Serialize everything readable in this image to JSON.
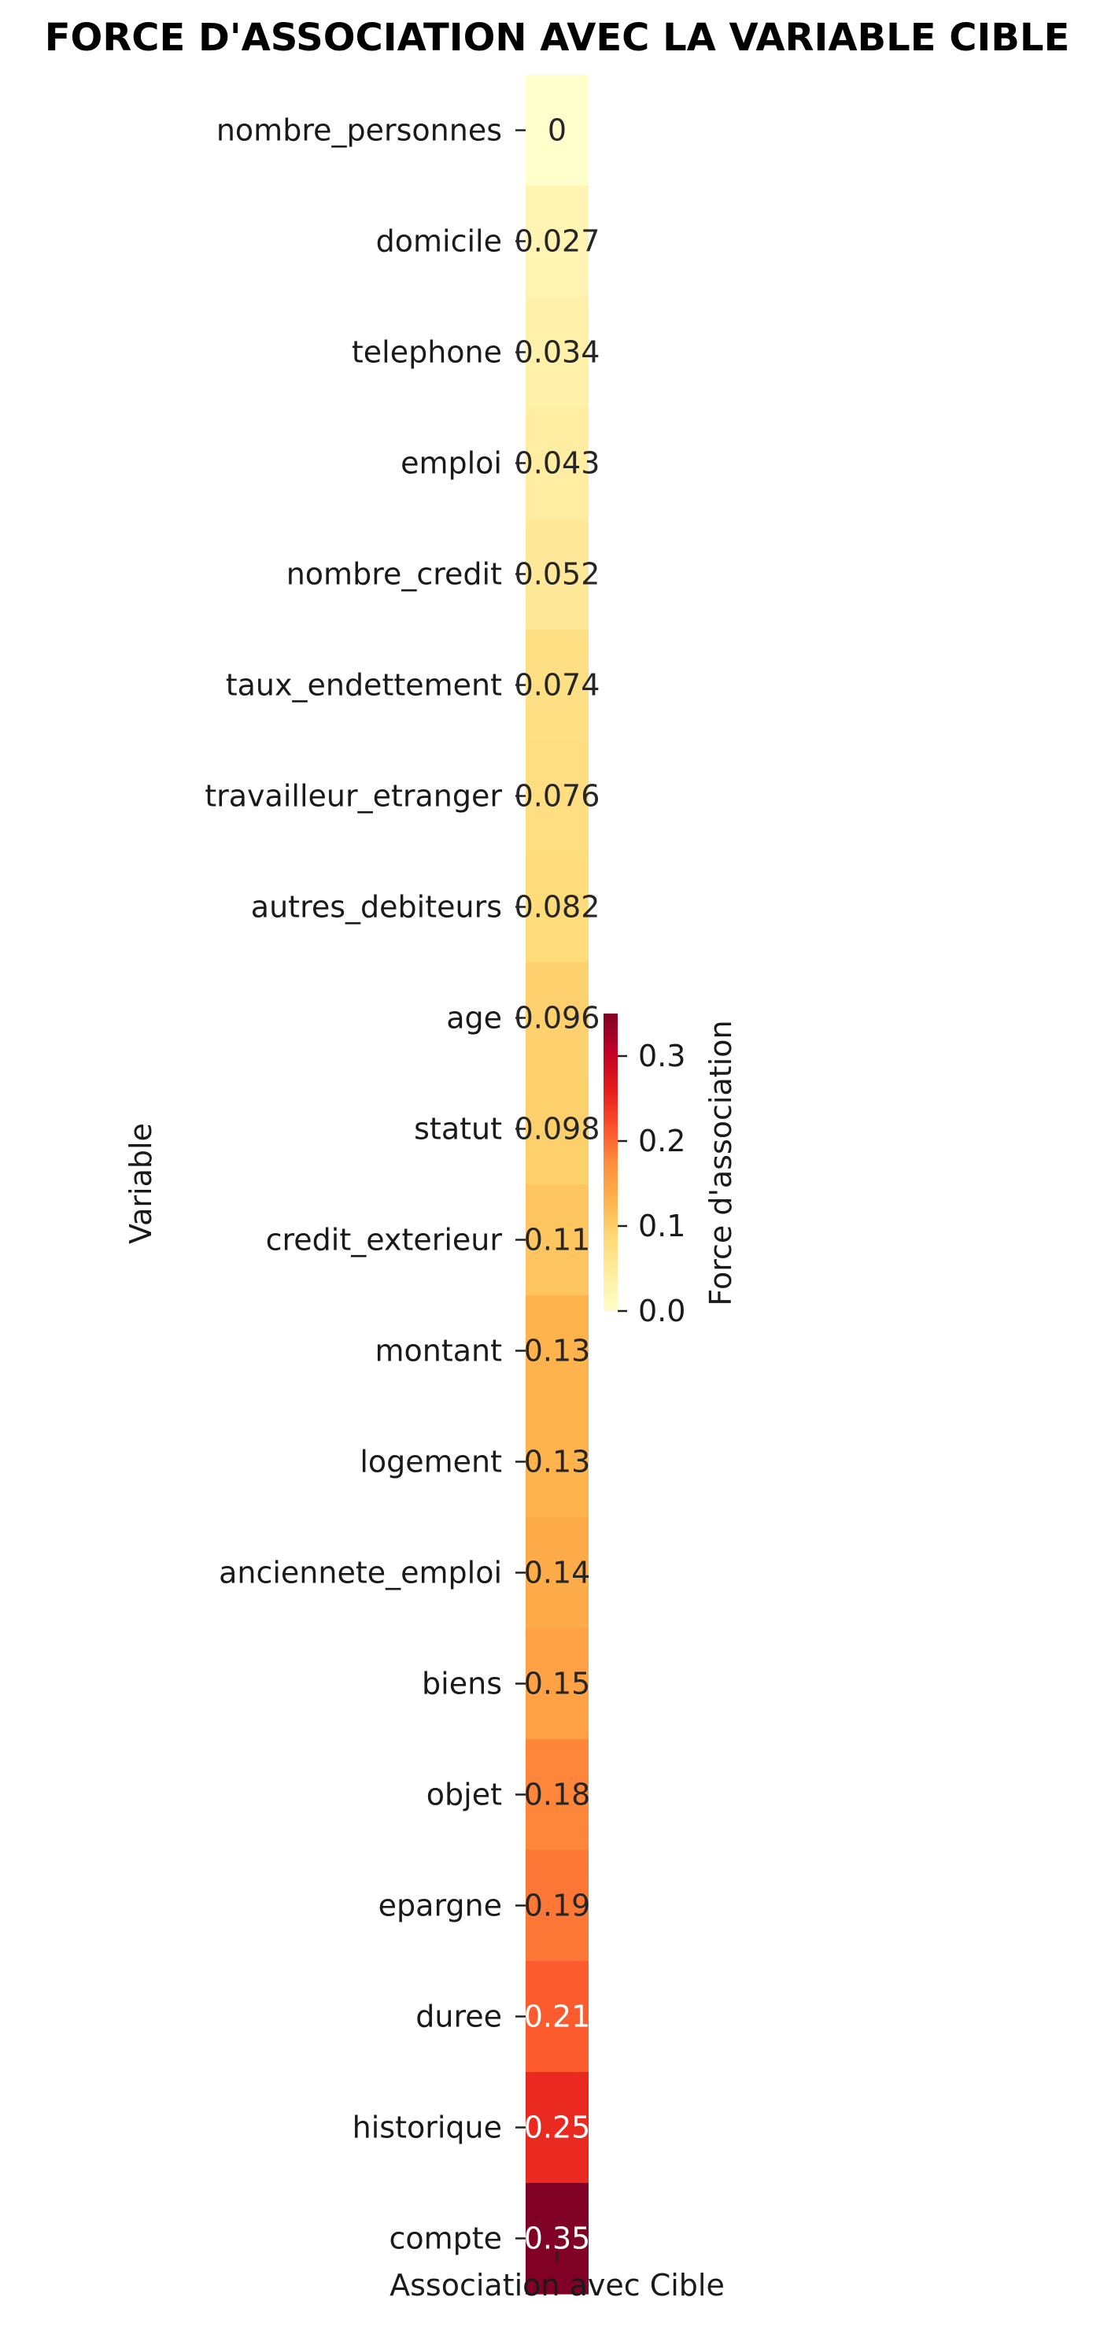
{
  "chart_data": {
    "type": "heatmap",
    "title": "FORCE D'ASSOCIATION AVEC LA VARIABLE CIBLE",
    "ylabel": "Variable",
    "xlabel": "",
    "x_categories": [
      "Association avec Cible"
    ],
    "rows": [
      {
        "label": "nombre_personnes",
        "value": 0.0,
        "text": "0"
      },
      {
        "label": "domicile",
        "value": 0.027,
        "text": "0.027"
      },
      {
        "label": "telephone",
        "value": 0.034,
        "text": "0.034"
      },
      {
        "label": "emploi",
        "value": 0.043,
        "text": "0.043"
      },
      {
        "label": "nombre_credit",
        "value": 0.052,
        "text": "0.052"
      },
      {
        "label": "taux_endettement",
        "value": 0.074,
        "text": "0.074"
      },
      {
        "label": "travailleur_etranger",
        "value": 0.076,
        "text": "0.076"
      },
      {
        "label": "autres_debiteurs",
        "value": 0.082,
        "text": "0.082"
      },
      {
        "label": "age",
        "value": 0.096,
        "text": "0.096"
      },
      {
        "label": "statut",
        "value": 0.098,
        "text": "0.098"
      },
      {
        "label": "credit_exterieur",
        "value": 0.11,
        "text": "0.11"
      },
      {
        "label": "montant",
        "value": 0.13,
        "text": "0.13"
      },
      {
        "label": "logement",
        "value": 0.13,
        "text": "0.13"
      },
      {
        "label": "anciennete_emploi",
        "value": 0.14,
        "text": "0.14"
      },
      {
        "label": "biens",
        "value": 0.15,
        "text": "0.15"
      },
      {
        "label": "objet",
        "value": 0.18,
        "text": "0.18"
      },
      {
        "label": "epargne",
        "value": 0.19,
        "text": "0.19"
      },
      {
        "label": "duree",
        "value": 0.21,
        "text": "0.21"
      },
      {
        "label": "historique",
        "value": 0.25,
        "text": "0.25"
      },
      {
        "label": "compte",
        "value": 0.35,
        "text": "0.35"
      }
    ],
    "colorbar": {
      "label": "Force d'association",
      "range": [
        0.0,
        0.35
      ],
      "ticks": [
        0.0,
        0.1,
        0.2,
        0.3
      ],
      "tick_labels": [
        "0.0",
        "0.1",
        "0.2",
        "0.3"
      ],
      "colormap": "YlOrRd"
    }
  }
}
